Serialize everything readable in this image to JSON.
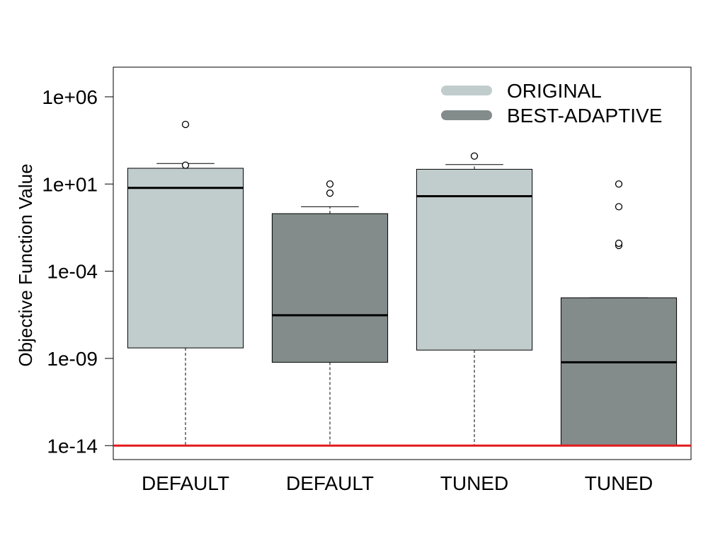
{
  "chart_data": {
    "type": "box",
    "ylabel": "Objective Function Value",
    "yscale": "log10",
    "ylim_log10": [
      -14.8,
      7.7
    ],
    "ytick_values": [
      1e-14,
      1e-09,
      0.0001,
      10,
      1000000.0
    ],
    "ytick_labels": [
      "1e-14",
      "1e-09",
      "1e-04",
      "1e+01",
      "1e+06"
    ],
    "categories": [
      "DEFAULT",
      "DEFAULT",
      "TUNED",
      "TUNED"
    ],
    "boxes": [
      {
        "group": "ORIGINAL",
        "whisker_low": 1e-14,
        "q1": 4e-09,
        "median": 6,
        "q3": 80,
        "whisker_high": 150.0,
        "outliers": [
          120.0,
          26000.0
        ]
      },
      {
        "group": "BEST-ADAPTIVE",
        "whisker_low": 1e-14,
        "q1": 6e-10,
        "median": 3e-07,
        "q3": 0.2,
        "whisker_high": 0.5,
        "outliers": [
          3,
          10
        ]
      },
      {
        "group": "ORIGINAL",
        "whisker_low": 1e-14,
        "q1": 3e-09,
        "median": 2,
        "q3": 70,
        "whisker_high": 130.0,
        "outliers": [
          400.0
        ]
      },
      {
        "group": "BEST-ADAPTIVE",
        "whisker_low": 1e-14,
        "q1": 1e-14,
        "median": 6e-10,
        "q3": 3e-06,
        "whisker_high": 3e-06,
        "outliers": [
          0.003,
          0.004,
          0.5,
          10
        ]
      }
    ],
    "reference_line": {
      "value": 1e-14,
      "color": "#e31a1c"
    },
    "legend": {
      "placement": "top-right",
      "entries": [
        {
          "label": "ORIGINAL",
          "color": "#c1cdcd"
        },
        {
          "label": "BEST-ADAPTIVE",
          "color": "#838b8b"
        }
      ]
    },
    "grid": false
  }
}
